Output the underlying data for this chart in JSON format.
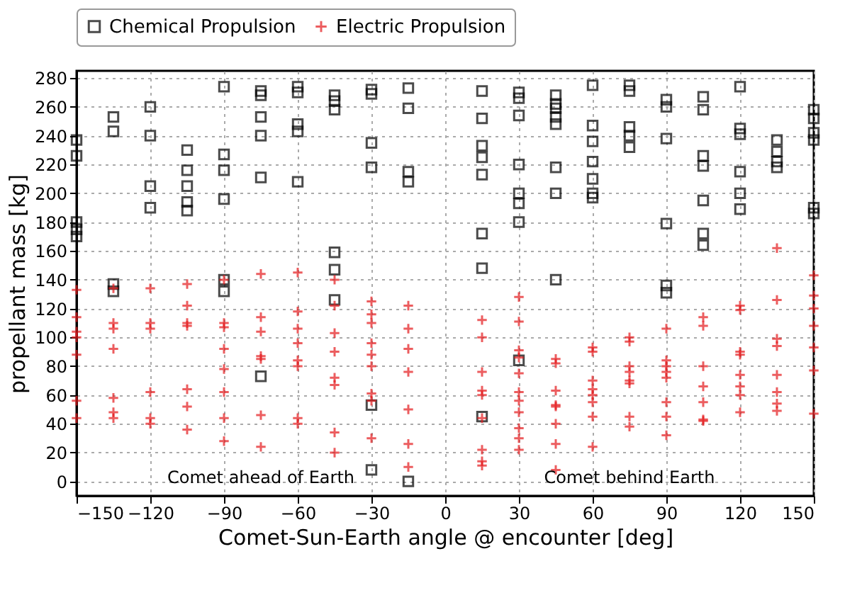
{
  "chart_data": {
    "type": "scatter",
    "xlabel": "Comet-Sun-Earth angle @ encounter [deg]",
    "ylabel": "propellant mass [kg]",
    "xlim": [
      -150,
      150
    ],
    "xticks": [
      -150,
      -120,
      -90,
      -60,
      -30,
      0,
      30,
      60,
      90,
      120,
      150
    ],
    "ylim": [
      -10,
      285
    ],
    "yticks": [
      0,
      20,
      40,
      60,
      80,
      100,
      120,
      140,
      160,
      180,
      200,
      220,
      240,
      260,
      280
    ],
    "grid": true,
    "legend": "top",
    "annotations": [
      "Comet ahead of Earth",
      "Comet behind Earth"
    ],
    "series": [
      {
        "name": "Chemical Propulsion",
        "color": "#000000",
        "marker": "square",
        "x": [
          -150,
          -150,
          -150,
          -150,
          -150,
          -135,
          -135,
          -135,
          -135,
          -120,
          -120,
          -120,
          -120,
          -105,
          -105,
          -105,
          -105,
          -105,
          -90,
          -90,
          -90,
          -90,
          -90,
          -90,
          -75,
          -75,
          -75,
          -75,
          -75,
          -75,
          -60,
          -60,
          -60,
          -60,
          -60,
          -45,
          -45,
          -45,
          -45,
          -45,
          -45,
          -30,
          -30,
          -30,
          -30,
          -30,
          -30,
          -15,
          -15,
          -15,
          -15,
          -15,
          15,
          15,
          15,
          15,
          15,
          15,
          15,
          15,
          30,
          30,
          30,
          30,
          30,
          30,
          30,
          30,
          45,
          45,
          45,
          45,
          45,
          45,
          45,
          45,
          60,
          60,
          60,
          60,
          60,
          60,
          60,
          75,
          75,
          75,
          75,
          75,
          90,
          90,
          90,
          90,
          90,
          90,
          105,
          105,
          105,
          105,
          105,
          105,
          105,
          120,
          120,
          120,
          120,
          120,
          120,
          135,
          135,
          135,
          135,
          150,
          150,
          150,
          150,
          150,
          150
        ],
        "values": [
          237,
          226,
          180,
          175,
          170,
          253,
          243,
          137,
          132,
          260,
          240,
          205,
          190,
          230,
          216,
          205,
          194,
          188,
          274,
          227,
          216,
          196,
          140,
          132,
          271,
          268,
          253,
          240,
          211,
          73,
          274,
          270,
          248,
          243,
          208,
          268,
          264,
          258,
          159,
          147,
          126,
          272,
          269,
          235,
          218,
          53,
          8,
          273,
          259,
          215,
          208,
          0,
          271,
          252,
          233,
          225,
          213,
          172,
          148,
          45,
          270,
          266,
          254,
          220,
          200,
          193,
          180,
          84,
          268,
          262,
          259,
          253,
          248,
          218,
          200,
          140,
          275,
          247,
          236,
          222,
          210,
          200,
          197,
          275,
          271,
          246,
          240,
          232,
          265,
          260,
          238,
          179,
          136,
          131,
          267,
          258,
          226,
          219,
          195,
          172,
          164,
          274,
          245,
          241,
          215,
          200,
          189,
          237,
          229,
          222,
          218,
          258,
          252,
          242,
          237,
          190,
          186
        ]
      },
      {
        "name": "Electric Propulsion",
        "color": "#e41a1c",
        "marker": "cross",
        "x": [
          -150,
          -150,
          -150,
          -150,
          -150,
          -150,
          -150,
          -135,
          -135,
          -135,
          -135,
          -135,
          -135,
          -135,
          -120,
          -120,
          -120,
          -120,
          -120,
          -120,
          -105,
          -105,
          -105,
          -105,
          -105,
          -105,
          -105,
          -90,
          -90,
          -90,
          -90,
          -90,
          -90,
          -90,
          -90,
          -75,
          -75,
          -75,
          -75,
          -75,
          -75,
          -75,
          -60,
          -60,
          -60,
          -60,
          -60,
          -60,
          -60,
          -60,
          -45,
          -45,
          -45,
          -45,
          -45,
          -45,
          -45,
          -45,
          -30,
          -30,
          -30,
          -30,
          -30,
          -30,
          -30,
          -30,
          -30,
          -15,
          -15,
          -15,
          -15,
          -15,
          -15,
          -15,
          15,
          15,
          15,
          15,
          15,
          15,
          15,
          15,
          15,
          30,
          30,
          30,
          30,
          30,
          30,
          30,
          30,
          30,
          30,
          30,
          45,
          45,
          45,
          45,
          45,
          45,
          45,
          45,
          60,
          60,
          60,
          60,
          60,
          60,
          60,
          60,
          75,
          75,
          75,
          75,
          75,
          75,
          75,
          75,
          90,
          90,
          90,
          90,
          90,
          90,
          90,
          90,
          105,
          105,
          105,
          105,
          105,
          105,
          105,
          120,
          120,
          120,
          120,
          120,
          120,
          120,
          120,
          135,
          135,
          135,
          135,
          135,
          135,
          135,
          135,
          150,
          150,
          150,
          150,
          150,
          150,
          150
        ],
        "values": [
          133,
          114,
          104,
          100,
          88,
          56,
          44,
          134,
          110,
          106,
          92,
          58,
          48,
          44,
          134,
          110,
          106,
          62,
          44,
          40,
          137,
          122,
          110,
          108,
          64,
          52,
          36,
          140,
          110,
          107,
          92,
          78,
          62,
          44,
          28,
          144,
          114,
          104,
          87,
          85,
          46,
          24,
          145,
          118,
          106,
          96,
          84,
          80,
          44,
          40,
          140,
          122,
          103,
          90,
          72,
          67,
          34,
          20,
          125,
          116,
          110,
          96,
          88,
          80,
          61,
          56,
          30,
          122,
          106,
          92,
          76,
          50,
          26,
          10,
          112,
          100,
          76,
          63,
          60,
          44,
          22,
          14,
          11,
          128,
          111,
          91,
          86,
          75,
          62,
          56,
          48,
          37,
          30,
          22,
          85,
          82,
          63,
          53,
          52,
          40,
          26,
          8,
          93,
          90,
          70,
          64,
          60,
          55,
          45,
          24,
          100,
          97,
          80,
          76,
          70,
          68,
          45,
          38,
          106,
          84,
          80,
          76,
          72,
          55,
          45,
          32,
          114,
          108,
          80,
          66,
          55,
          43,
          42,
          122,
          119,
          90,
          88,
          74,
          66,
          60,
          48,
          162,
          126,
          99,
          94,
          74,
          62,
          54,
          49,
          143,
          129,
          120,
          108,
          93,
          77,
          47
        ]
      }
    ]
  }
}
